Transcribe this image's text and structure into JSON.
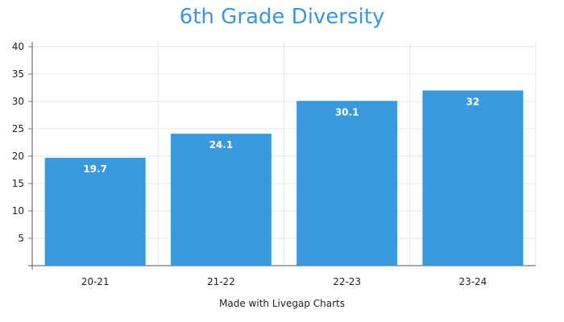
{
  "chart_data": {
    "type": "bar",
    "title": "6th Grade Diversity",
    "categories": [
      "20-21",
      "21-22",
      "22-23",
      "23-24"
    ],
    "values": [
      19.7,
      24.1,
      30.1,
      32
    ],
    "data_labels": [
      "19.7",
      "24.1",
      "30.1",
      "32"
    ],
    "ylim": [
      0,
      40
    ],
    "yticks": [
      5,
      10,
      15,
      20,
      25,
      30,
      35,
      40
    ],
    "xlabel": "",
    "ylabel": "",
    "grid": true,
    "bar_color": "#3a99dd"
  },
  "footer": "Made with Livegap Charts"
}
